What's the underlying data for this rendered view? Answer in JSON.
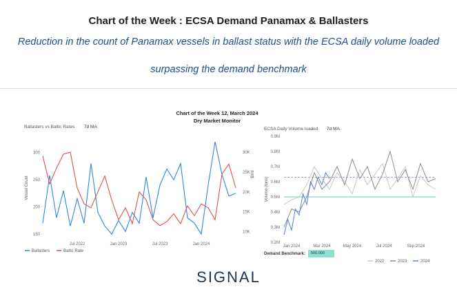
{
  "header": {
    "title": "Chart of the Week : ECSA Demand Panamax & Ballasters",
    "subtitle_line1": "Reduction in the count of Panamax vessels in ballast status with the ECSA daily volume loaded",
    "subtitle_line2": "surpassing the demand benchmark"
  },
  "report": {
    "title_line1": "Chart of the Week 12, March 2024",
    "title_line2": "Dry Market Monitor"
  },
  "brand": {
    "name": "SIGNAL"
  },
  "colors": {
    "ballasters": "#2e86de",
    "baltic": "#d9534f",
    "y2022": "#c8c8c8",
    "y2023": "#8a8a8a",
    "y2024": "#5b7fd6",
    "benchmark": "#7fd8cc",
    "dashed_ref": "#7f7fd6"
  },
  "chart_data": [
    {
      "type": "line",
      "title": "Ballasters vs Baltic Rates",
      "moving_average": "7d MA",
      "ylabel": "Vessel Count",
      "y2label": "$/mt",
      "ylim": [
        140,
        330
      ],
      "y2lim": [
        8000,
        34000
      ],
      "yticks": [
        150,
        200,
        250,
        300
      ],
      "y2ticks": [
        "10K",
        "15K",
        "20K",
        "25K",
        "30K"
      ],
      "y2tick_values": [
        10000,
        15000,
        20000,
        25000,
        30000
      ],
      "xlim": [
        0,
        28
      ],
      "xticks": [
        {
          "label": "Jul 2022",
          "x": 5
        },
        {
          "label": "Jan 2023",
          "x": 11
        },
        {
          "label": "Jul 2023",
          "x": 17
        },
        {
          "label": "Jan 2024",
          "x": 23
        }
      ],
      "legend_position": "bottom-left",
      "series": [
        {
          "name": "Ballasters",
          "axis": "left",
          "x": [
            0,
            1,
            2,
            3,
            4,
            5,
            6,
            7,
            8,
            9,
            10,
            11,
            12,
            13,
            14,
            15,
            16,
            17,
            18,
            19,
            20,
            21,
            22,
            23,
            24,
            25,
            26,
            27,
            28
          ],
          "values": [
            170,
            258,
            180,
            230,
            165,
            215,
            170,
            280,
            190,
            165,
            150,
            175,
            155,
            190,
            170,
            255,
            180,
            240,
            270,
            250,
            280,
            180,
            170,
            150,
            240,
            320,
            260,
            220,
            225
          ]
        },
        {
          "name": "Baltic Rate",
          "axis": "right",
          "x": [
            0,
            1,
            2,
            3,
            4,
            5,
            6,
            7,
            8,
            9,
            10,
            11,
            12,
            13,
            14,
            15,
            16,
            17,
            18,
            19,
            20,
            21,
            22,
            23,
            24,
            25,
            26,
            27,
            28
          ],
          "values": [
            29000,
            22000,
            26000,
            29500,
            30000,
            21000,
            17000,
            16000,
            20000,
            24000,
            18000,
            13000,
            16000,
            12000,
            20000,
            18000,
            13000,
            11500,
            12500,
            14500,
            12000,
            16500,
            14000,
            17000,
            16000,
            13000,
            24500,
            27000,
            21000
          ]
        }
      ]
    },
    {
      "type": "line",
      "title": "ECSA Daily Volume loaded",
      "moving_average": "7d MA",
      "ylabel": "Volume (tons)",
      "ylim": [
        0.2,
        0.9
      ],
      "yticks": [
        "0.2M",
        "0.3M",
        "0.4M",
        "0.5M",
        "0.6M",
        "0.7M",
        "0.8M",
        "0.9M"
      ],
      "ytick_values": [
        0.2,
        0.3,
        0.4,
        0.5,
        0.6,
        0.7,
        0.8,
        0.9
      ],
      "xlim": [
        0,
        10
      ],
      "xticks": [
        {
          "label": "Jan 2024",
          "x": 0.5
        },
        {
          "label": "Mar 2024",
          "x": 2.5
        },
        {
          "label": "May 2024",
          "x": 4.5
        },
        {
          "label": "Jul 2024",
          "x": 6.6
        },
        {
          "label": "Sep 2024",
          "x": 8.7
        }
      ],
      "benchmark_label": "Demand Benchmark:",
      "benchmark_value": "500,000",
      "benchmark": 0.5,
      "reference_dashed": 0.63,
      "legend_position": "bottom-right",
      "series": [
        {
          "name": "2022",
          "x": [
            0,
            0.5,
            1,
            1.5,
            2,
            2.5,
            3,
            3.5,
            4,
            4.5,
            5,
            5.5,
            6,
            6.5,
            7,
            7.5,
            8,
            8.5,
            9,
            9.5,
            10
          ],
          "values": [
            0.45,
            0.48,
            0.5,
            0.58,
            0.7,
            0.62,
            0.55,
            0.66,
            0.6,
            0.52,
            0.68,
            0.58,
            0.65,
            0.72,
            0.55,
            0.62,
            0.7,
            0.5,
            0.64,
            0.58,
            0.55
          ]
        },
        {
          "name": "2023",
          "x": [
            0,
            0.5,
            1,
            1.5,
            2,
            2.5,
            3,
            3.5,
            4,
            4.5,
            5,
            5.5,
            6,
            6.5,
            7,
            7.5,
            8,
            8.5,
            9,
            9.5,
            10
          ],
          "values": [
            0.3,
            0.42,
            0.4,
            0.5,
            0.66,
            0.55,
            0.6,
            0.7,
            0.58,
            0.75,
            0.62,
            0.7,
            0.55,
            0.65,
            0.8,
            0.6,
            0.68,
            0.55,
            0.72,
            0.6,
            0.62
          ]
        },
        {
          "name": "2024",
          "x": [
            0,
            0.25,
            0.5,
            0.75,
            1,
            1.25,
            1.5,
            1.75,
            2,
            2.25,
            2.5,
            2.75,
            3
          ],
          "values": [
            0.25,
            0.35,
            0.28,
            0.42,
            0.38,
            0.52,
            0.45,
            0.6,
            0.55,
            0.63,
            0.58,
            0.66,
            0.62
          ]
        }
      ]
    }
  ]
}
